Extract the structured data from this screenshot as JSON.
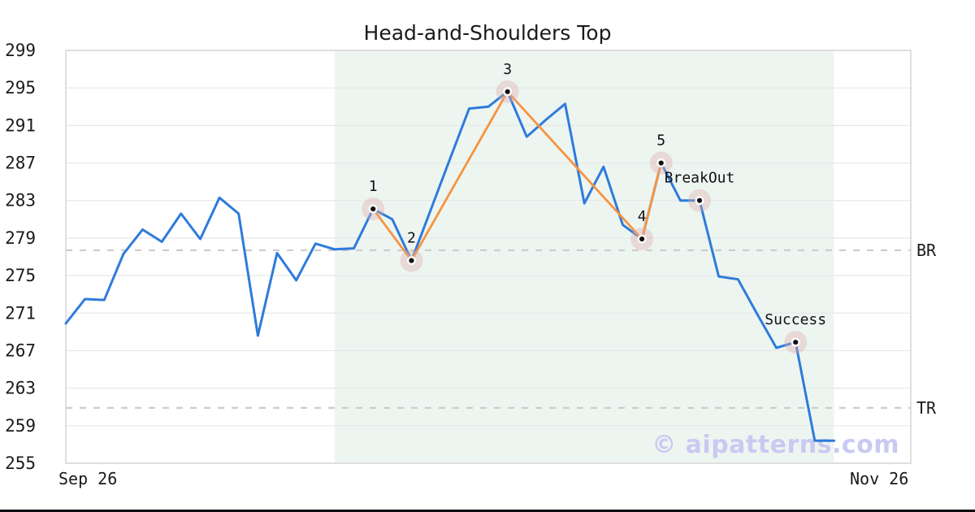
{
  "chart_data": {
    "type": "line",
    "title": "Head-and-Shoulders Top",
    "x_tick_labels": [
      "Sep 26",
      "Nov 26"
    ],
    "y_ticks": [
      255,
      259,
      263,
      267,
      271,
      275,
      279,
      283,
      287,
      291,
      295,
      299
    ],
    "ylim": [
      255,
      299
    ],
    "x_axis_units": 44,
    "grid": true,
    "legend": "none",
    "shaded_region": {
      "from_index": 14,
      "to_index": 40
    },
    "series": [
      {
        "name": "price",
        "values": [
          269.9,
          272.5,
          272.4,
          277.3,
          279.9,
          278.6,
          281.6,
          278.9,
          283.3,
          281.6,
          268.6,
          277.4,
          274.5,
          278.4,
          277.8,
          277.9,
          282.1,
          281.0,
          276.6,
          282.0,
          287.4,
          292.8,
          293.0,
          294.6,
          289.8,
          291.6,
          293.3,
          282.7,
          286.6,
          280.4,
          278.9,
          287.0,
          283.0,
          283.0,
          274.9,
          274.6,
          270.9,
          267.3,
          267.9,
          257.4,
          257.4
        ]
      },
      {
        "name": "pattern",
        "points": [
          [
            16,
            282.1
          ],
          [
            18,
            276.6
          ],
          [
            23,
            294.6
          ],
          [
            30,
            278.9
          ],
          [
            31,
            287.0
          ]
        ]
      }
    ],
    "markers": [
      {
        "label": "1",
        "index": 16,
        "price": 282.1
      },
      {
        "label": "2",
        "index": 18,
        "price": 276.6
      },
      {
        "label": "3",
        "index": 23,
        "price": 294.6
      },
      {
        "label": "4",
        "index": 30,
        "price": 278.9
      },
      {
        "label": "5",
        "index": 31,
        "price": 287.0
      },
      {
        "label": "BreakOut",
        "index": 33,
        "price": 283.0
      },
      {
        "label": "Success",
        "index": 38,
        "price": 267.9
      }
    ],
    "reference_lines": [
      {
        "label": "BR",
        "price": 277.7
      },
      {
        "label": "TR",
        "price": 260.9
      }
    ]
  },
  "watermark": {
    "text": "© aipatterns.com"
  },
  "colors": {
    "price_line": "#2e7bdb",
    "pattern_line": "#f7943e",
    "shade": "#edf5f1",
    "grid": "#e7e7e7",
    "spine": "#d6d6d6",
    "dash": "#cccccc",
    "marker_halo": "rgba(222,172,172,0.38)",
    "marker_dot": "#111111",
    "text": "#1a1a1a",
    "watermark": "#c9c9f1",
    "bottom_bar": "#0b0b12"
  }
}
